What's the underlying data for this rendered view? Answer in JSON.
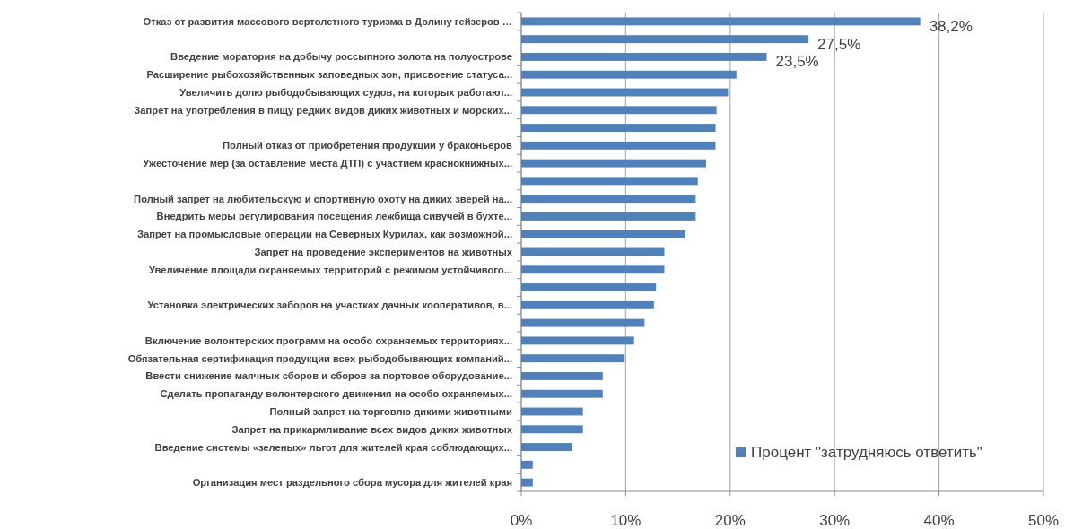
{
  "chart_data": {
    "type": "bar",
    "orientation": "horizontal",
    "categories": [
      "Отказ от развития массового вертолетного туризма в Долину гейзеров  …",
      null,
      "Введение моратория на добычу россыпного золота на полуострове",
      "Расширение рыбохозяйственных заповедных зон, присвоение статуса...",
      "Увеличить долю рыбодобывающих судов, на которых работают...",
      "Запрет на употребления в пищу редких видов диких животных и морских...",
      null,
      "Полный отказ от приобретения продукции у браконьеров",
      "Ужесточение мер (за оставление места ДТП) с участием краснокнижных...",
      null,
      "Полный запрет на любительскую и спортивную охоту на диких зверей на...",
      "Внедрить меры регулирования посещения лежбища сивучей в бухте...",
      "Запрет на промысловые операции на Северных Курилах, как возможной...",
      "Запрет на проведение экспериментов на животных",
      "Увеличение площади охраняемых территорий с режимом устойчивого...",
      null,
      "Установка электрических заборов на участках дачных кооперативов,  в...",
      null,
      "Включение волонтерских программ на особо охраняемых территориях...",
      "Обязательная сертификация продукции всех рыбодобывающих компаний...",
      "Ввести снижение маячных сборов и сборов за портовое оборудование...",
      "Сделать пропаганду волонтерского движения на особо охраняемых...",
      "Полный запрет на торговлю дикими животными",
      "Запрет на прикармливание всех видов диких животных",
      "Введение системы «зеленых» льгот для жителей края соблюдающих...",
      null,
      "Организация мест раздельного сбора мусора для жителей края"
    ],
    "series": [
      {
        "name": "Процент \"затрудняюсь ответить\"",
        "color": "#4f81bd",
        "values": [
          38.2,
          27.5,
          23.5,
          20.6,
          19.8,
          18.7,
          18.6,
          18.6,
          17.7,
          16.9,
          16.7,
          16.7,
          15.7,
          13.7,
          13.7,
          12.9,
          12.7,
          11.8,
          10.8,
          9.9,
          7.8,
          7.8,
          5.9,
          5.9,
          4.9,
          1.1,
          1.1
        ],
        "value_labels": [
          "38,2%",
          "27,5%",
          "23,5%",
          null,
          null,
          null,
          null,
          null,
          null,
          null,
          null,
          null,
          null,
          null,
          null,
          null,
          null,
          null,
          null,
          null,
          null,
          null,
          null,
          null,
          null,
          null,
          null
        ]
      }
    ],
    "xlim": [
      0,
      50
    ],
    "xticks": [
      {
        "value": 0,
        "label": "0%"
      },
      {
        "value": 10,
        "label": "10%"
      },
      {
        "value": 20,
        "label": "20%"
      },
      {
        "value": 30,
        "label": "30%"
      },
      {
        "value": 40,
        "label": "40%"
      },
      {
        "value": 50,
        "label": "50%"
      }
    ],
    "grid": "x",
    "legend": "bottom right"
  }
}
